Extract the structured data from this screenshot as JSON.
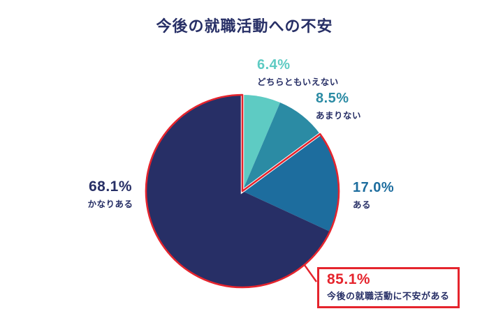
{
  "chart_data": {
    "type": "pie",
    "title": "今後の就職活動への不安",
    "start_angle_deg": -90,
    "direction": "clockwise",
    "legend_position": "none",
    "segments": [
      {
        "label": "どちらともいえない",
        "value": 6.4,
        "pct_label": "6.4%",
        "color": "#5ecbc3"
      },
      {
        "label": "あまりない",
        "value": 8.5,
        "pct_label": "8.5%",
        "color": "#2b8ba4"
      },
      {
        "label": "ある",
        "value": 17.0,
        "pct_label": "17.0%",
        "color": "#1d6d9e"
      },
      {
        "label": "かなりある",
        "value": 68.1,
        "pct_label": "68.1%",
        "color": "#272f66"
      }
    ],
    "highlight": {
      "pct_label": "85.1%",
      "value": 85.1,
      "label": "今後の就職活動に不安がある",
      "covers": [
        "ある",
        "かなりある"
      ],
      "color": "#e5242d"
    }
  },
  "colors": {
    "title_text": "#272f66",
    "sub_label_text": "#272f66",
    "background": "#ffffff"
  }
}
